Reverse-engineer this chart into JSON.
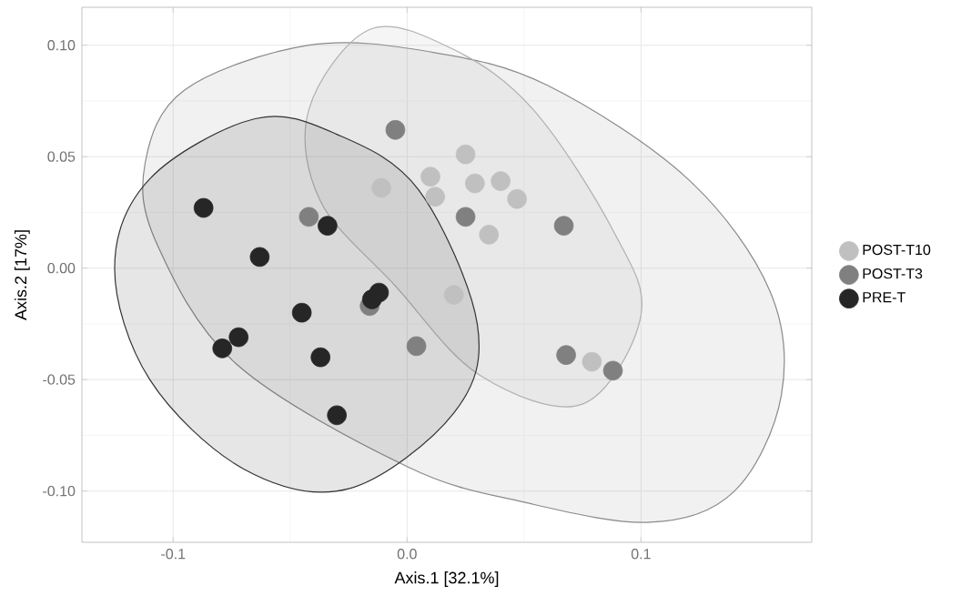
{
  "chart_data": {
    "type": "scatter",
    "xlabel": "Axis.1 [32.1%]",
    "ylabel": "Axis.2 [17%]",
    "xlim": [
      -0.139,
      0.173
    ],
    "ylim": [
      -0.123,
      0.117
    ],
    "xticks": [
      {
        "value": -0.1,
        "label": "-0.1"
      },
      {
        "value": 0,
        "label": "0.0"
      },
      {
        "value": 0.1,
        "label": "0.1"
      }
    ],
    "yticks": [
      {
        "value": -0.1,
        "label": "-0.10"
      },
      {
        "value": -0.05,
        "label": "-0.05"
      },
      {
        "value": 0,
        "label": "0.00"
      },
      {
        "value": 0.05,
        "label": "0.05"
      },
      {
        "value": 0.1,
        "label": "0.10"
      }
    ],
    "grid": true,
    "legend": "right",
    "series": [
      {
        "type": "area",
        "color": "#8a8a8a",
        "x": [
          -0.112,
          -0.095,
          -0.042,
          0.01,
          0.06,
          0.12,
          0.155,
          0.16,
          0.14,
          0.104,
          0.05,
          0.0,
          -0.073,
          -0.107
        ],
        "values": [
          0.047,
          0.08,
          0.1,
          0.097,
          0.082,
          0.04,
          -0.01,
          -0.057,
          -0.1,
          -0.114,
          -0.105,
          -0.089,
          -0.043,
          0.011
        ]
      },
      {
        "type": "area",
        "color": "#b0b0b0",
        "x": [
          -0.016,
          -0.042,
          -0.037,
          -0.005,
          0.031,
          0.075,
          0.1,
          0.088,
          0.054,
          0.02
        ],
        "values": [
          0.107,
          0.071,
          0.03,
          -0.008,
          -0.048,
          -0.061,
          -0.021,
          0.017,
          0.071,
          0.098
        ]
      },
      {
        "type": "area",
        "color": "#333333",
        "x": [
          -0.125,
          -0.11,
          -0.065,
          -0.03,
          0.005,
          0.03,
          0.02,
          -0.025,
          -0.07,
          -0.11
        ],
        "values": [
          0.0,
          0.04,
          0.067,
          0.06,
          0.035,
          -0.025,
          -0.065,
          -0.099,
          -0.09,
          -0.05
        ]
      },
      {
        "name": "POST-T10",
        "color": "#c0c0c0",
        "x": [
          -0.011,
          0.01,
          0.012,
          0.025,
          0.029,
          0.04,
          0.047,
          0.035,
          0.02,
          0.079
        ],
        "values": [
          0.036,
          0.041,
          0.032,
          0.051,
          0.038,
          0.039,
          0.031,
          0.015,
          -0.012,
          -0.042
        ]
      },
      {
        "name": "POST-T3",
        "color": "#808080",
        "x": [
          -0.005,
          -0.042,
          -0.016,
          0.004,
          0.025,
          0.067,
          0.068,
          0.088
        ],
        "values": [
          0.062,
          0.023,
          -0.017,
          -0.035,
          0.023,
          0.019,
          -0.039,
          -0.046
        ]
      },
      {
        "name": "PRE-T",
        "color": "#262626",
        "x": [
          -0.087,
          -0.063,
          -0.034,
          -0.045,
          -0.072,
          -0.079,
          -0.037,
          -0.03,
          -0.012,
          -0.015
        ],
        "values": [
          0.027,
          0.005,
          0.019,
          -0.02,
          -0.031,
          -0.036,
          -0.04,
          -0.066,
          -0.011,
          -0.014
        ]
      }
    ]
  }
}
